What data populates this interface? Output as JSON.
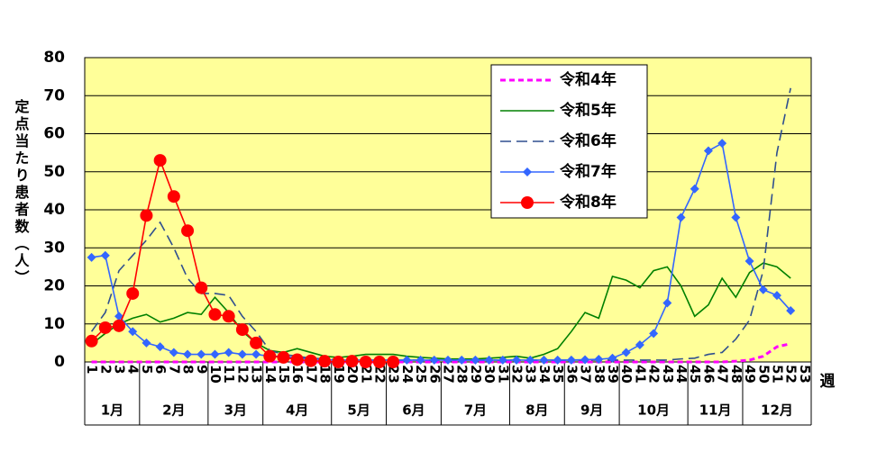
{
  "chart_data": {
    "type": "line",
    "y_label": "定点当たり患者数（人）",
    "x_unit": "週",
    "categories": [
      "1",
      "2",
      "3",
      "4",
      "5",
      "6",
      "7",
      "8",
      "9",
      "10",
      "11",
      "12",
      "13",
      "14",
      "15",
      "16",
      "17",
      "18",
      "19",
      "20",
      "21",
      "22",
      "23",
      "24",
      "25",
      "26",
      "27",
      "28",
      "29",
      "30",
      "31",
      "32",
      "33",
      "34",
      "35",
      "36",
      "37",
      "38",
      "39",
      "40",
      "41",
      "42",
      "43",
      "44",
      "45",
      "46",
      "47",
      "48",
      "49",
      "50",
      "51",
      "52",
      "53"
    ],
    "month_labels": [
      "1月",
      "2月",
      "3月",
      "4月",
      "5月",
      "6月",
      "7月",
      "8月",
      "9月",
      "10月",
      "11月",
      "12月"
    ],
    "month_weeks": [
      4,
      5,
      4,
      5,
      4,
      4,
      5,
      4,
      4,
      5,
      4,
      5
    ],
    "ylim": [
      0,
      80
    ],
    "yticks": [
      0,
      10,
      20,
      30,
      40,
      50,
      60,
      70,
      80
    ],
    "grid": true,
    "plot_background": "#ffff99",
    "series": [
      {
        "name": "令和4年",
        "color": "#ff00ff",
        "dash": "6 4",
        "width": 3,
        "marker": null,
        "values": [
          0,
          0,
          0,
          0,
          0,
          0,
          0,
          0,
          0,
          0,
          0,
          0,
          0,
          0,
          0,
          0,
          0,
          0,
          0,
          0,
          0,
          0,
          0,
          0,
          0,
          0,
          0,
          0,
          0,
          0,
          0,
          0,
          0,
          0,
          0,
          0,
          0,
          0,
          0,
          0,
          0,
          0,
          0,
          0,
          0,
          0,
          0,
          0.2,
          0.5,
          1.5,
          4,
          4.8,
          null
        ]
      },
      {
        "name": "令和5年",
        "color": "#008000",
        "dash": null,
        "width": 1.6,
        "marker": null,
        "values": [
          4.7,
          7.5,
          10,
          11.5,
          12.5,
          10.5,
          11.5,
          13,
          12.5,
          17,
          13,
          8,
          5,
          3,
          2.5,
          3.5,
          2.5,
          1.5,
          1.2,
          1.5,
          2,
          2,
          2,
          1.5,
          1.2,
          1,
          0.8,
          0.8,
          0.8,
          1,
          1.2,
          1.5,
          1,
          2,
          3.5,
          8,
          13,
          11.5,
          22.5,
          21.5,
          19.5,
          24,
          25,
          20,
          12,
          15,
          22,
          17,
          23.5,
          26,
          25,
          22,
          null
        ]
      },
      {
        "name": "令和6年",
        "color": "#2f4f8f",
        "dash": "12 6",
        "width": 1.6,
        "marker": null,
        "values": [
          8,
          13,
          24,
          28,
          32,
          36.7,
          30,
          22,
          18,
          18,
          17.5,
          12,
          8,
          3,
          2,
          1.5,
          1,
          0.8,
          0.5,
          0.5,
          0.5,
          0.5,
          0.5,
          0.5,
          0.5,
          0.5,
          0.5,
          0.5,
          0.5,
          0.5,
          0.5,
          0.5,
          0.5,
          0.5,
          0.5,
          0.5,
          0.5,
          0.5,
          0.5,
          0.5,
          0.5,
          0.5,
          0.5,
          0.8,
          1,
          2,
          2.5,
          6,
          11,
          24,
          55,
          72,
          null
        ]
      },
      {
        "name": "令和7年",
        "color": "#3366ff",
        "dash": null,
        "width": 1.6,
        "marker": "diamond",
        "values": [
          27.5,
          28,
          12,
          8,
          5,
          4,
          2.5,
          2,
          2,
          2,
          2.5,
          2,
          2,
          1.5,
          1.5,
          1,
          0.8,
          0.6,
          0.5,
          0.5,
          0.5,
          0.5,
          0.5,
          0.5,
          0.5,
          0.5,
          0.5,
          0.5,
          0.5,
          0.5,
          0.5,
          0.5,
          0.5,
          0.5,
          0.5,
          0.5,
          0.6,
          0.7,
          1,
          2.5,
          4.5,
          7.5,
          15.5,
          38,
          45.5,
          55.5,
          57.5,
          38,
          26.5,
          19,
          17.5,
          13.5,
          null
        ]
      },
      {
        "name": "令和8年",
        "color": "#ff0000",
        "dash": null,
        "width": 1.6,
        "marker": "circle",
        "values": [
          5.5,
          9,
          9.5,
          18,
          38.5,
          53,
          43.5,
          34.5,
          19.5,
          12.5,
          12,
          8.5,
          5,
          1.5,
          1.2,
          0.6,
          0.3,
          0.2,
          0,
          0.2,
          0,
          0,
          0,
          null,
          null,
          null,
          null,
          null,
          null,
          null,
          null,
          null,
          null,
          null,
          null,
          null,
          null,
          null,
          null,
          null,
          null,
          null,
          null,
          null,
          null,
          null,
          null,
          null,
          null,
          null,
          null,
          null,
          null
        ]
      }
    ]
  }
}
